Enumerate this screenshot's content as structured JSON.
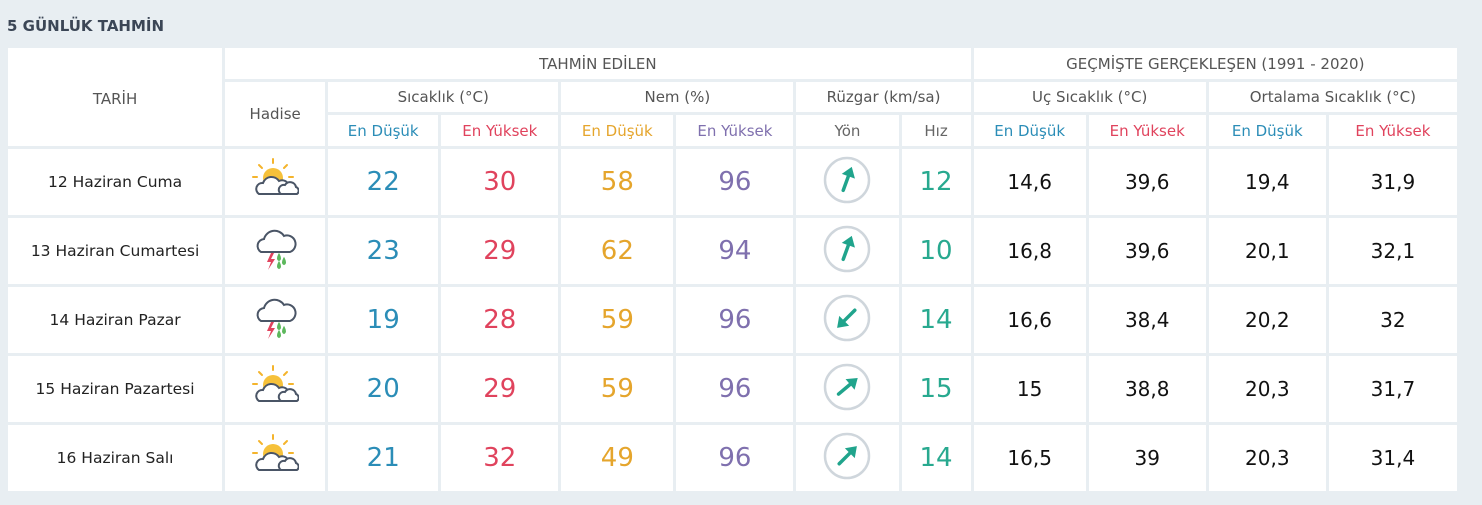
{
  "title": "5 GÜNLÜK TAHMİN",
  "header": {
    "date": "TARİH",
    "forecast": "TAHMİN EDİLEN",
    "past": "GEÇMİŞTE GERÇEKLEŞEN (1991 - 2020)",
    "event": "Hadise",
    "temp": "Sıcaklık (°C)",
    "humidity": "Nem (%)",
    "wind": "Rüzgar (km/sa)",
    "extreme": "Uç Sıcaklık (°C)",
    "average": "Ortalama Sıcaklık (°C)",
    "sub": [
      "En Düşük",
      "En Yüksek",
      "En Düşük",
      "En Yüksek",
      "Yön",
      "Hız",
      "En Düşük",
      "En Yüksek",
      "En Düşük",
      "En Yüksek"
    ]
  },
  "rows": [
    {
      "cells": [
        "12 Haziran Cuma",
        "22",
        "30",
        "58",
        "96",
        "12",
        "14,6",
        "39,6",
        "19,4",
        "31,9"
      ],
      "wind_direction": 20
    },
    {
      "cells": [
        "13 Haziran Cumartesi",
        "23",
        "29",
        "62",
        "94",
        "10",
        "16,8",
        "39,6",
        "20,1",
        "32,1"
      ],
      "wind_direction": 20
    },
    {
      "cells": [
        "14 Haziran Pazar",
        "19",
        "28",
        "59",
        "96",
        "14",
        "16,6",
        "38,4",
        "20,2",
        "32"
      ],
      "wind_direction": 225
    },
    {
      "cells": [
        "15 Haziran Pazartesi",
        "20",
        "29",
        "59",
        "96",
        "15",
        "15",
        "38,8",
        "20,3",
        "31,7"
      ],
      "wind_direction": 50
    },
    {
      "cells": [
        "16 Haziran Salı",
        "21",
        "32",
        "49",
        "96",
        "14",
        "16,5",
        "39",
        "20,3",
        "31,4"
      ],
      "wind_direction": 45
    }
  ]
}
